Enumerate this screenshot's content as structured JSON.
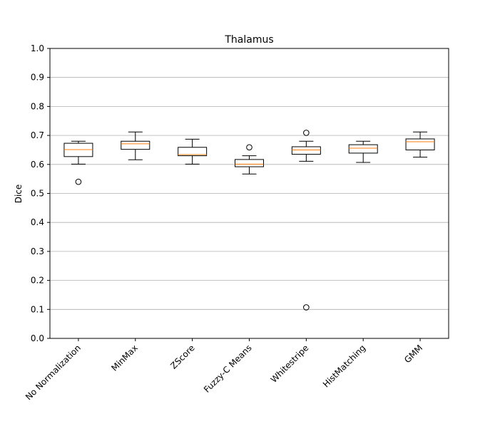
{
  "chart_data": {
    "type": "box",
    "title": "Thalamus",
    "xlabel": "",
    "ylabel": "Dice",
    "ylim": [
      0.0,
      1.0
    ],
    "yticks": [
      0.0,
      0.1,
      0.2,
      0.3,
      0.4,
      0.5,
      0.6,
      0.7,
      0.8,
      0.9,
      1.0
    ],
    "ytick_labels": [
      "0.0",
      "0.1",
      "0.2",
      "0.3",
      "0.4",
      "0.5",
      "0.6",
      "0.7",
      "0.8",
      "0.9",
      "1.0"
    ],
    "grid": "y",
    "categories": [
      "No Normalization",
      "MinMax",
      "ZScore",
      "Fuzzy-C Means",
      "Whitestripe",
      "HistMatching",
      "GMM"
    ],
    "boxes": [
      {
        "whisker_low": 0.601,
        "q1": 0.627,
        "median": 0.651,
        "q3": 0.673,
        "whisker_high": 0.68,
        "outliers": [
          0.54
        ]
      },
      {
        "whisker_low": 0.616,
        "q1": 0.652,
        "median": 0.671,
        "q3": 0.68,
        "whisker_high": 0.712,
        "outliers": []
      },
      {
        "whisker_low": 0.601,
        "q1": 0.63,
        "median": 0.634,
        "q3": 0.659,
        "whisker_high": 0.687,
        "outliers": []
      },
      {
        "whisker_low": 0.567,
        "q1": 0.592,
        "median": 0.601,
        "q3": 0.617,
        "whisker_high": 0.63,
        "outliers": [
          0.659
        ]
      },
      {
        "whisker_low": 0.611,
        "q1": 0.635,
        "median": 0.65,
        "q3": 0.661,
        "whisker_high": 0.68,
        "outliers": [
          0.709,
          0.107
        ]
      },
      {
        "whisker_low": 0.607,
        "q1": 0.639,
        "median": 0.656,
        "q3": 0.668,
        "whisker_high": 0.68,
        "outliers": []
      },
      {
        "whisker_low": 0.625,
        "q1": 0.65,
        "median": 0.678,
        "q3": 0.688,
        "whisker_high": 0.712,
        "outliers": []
      }
    ],
    "colors": {
      "box": "#000000",
      "median": "#ff7f0e",
      "grid": "#b0b0b0"
    }
  }
}
